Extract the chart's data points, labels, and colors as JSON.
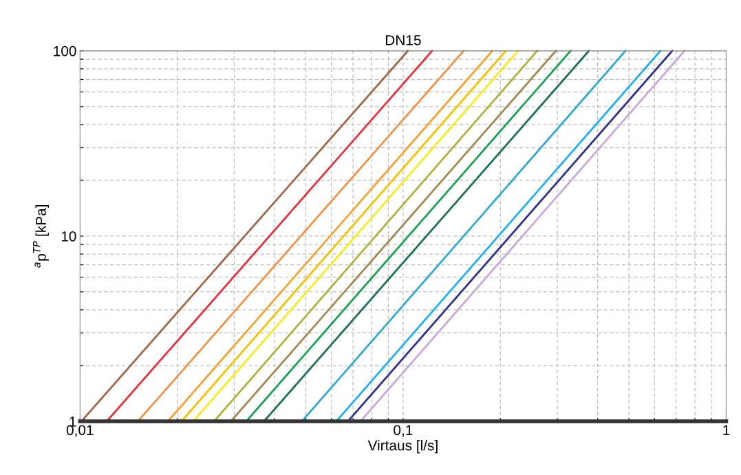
{
  "chart_data": {
    "type": "line",
    "title": "DN15",
    "xlabel": "Virtaus [l/s]",
    "ylabel": "$^{a}$p$^{TP}$ [kPa]",
    "log": "xy",
    "grid": true,
    "line_style": "solid",
    "xlim": [
      0.01,
      1
    ],
    "ylim": [
      1,
      100
    ],
    "xticks": [
      {
        "value": 0.01,
        "label": "0,01"
      },
      {
        "value": 0.02,
        "label": null
      },
      {
        "value": 0.03,
        "label": null
      },
      {
        "value": 0.04,
        "label": null
      },
      {
        "value": 0.05,
        "label": null
      },
      {
        "value": 0.06,
        "label": null
      },
      {
        "value": 0.07,
        "label": null
      },
      {
        "value": 0.08,
        "label": null
      },
      {
        "value": 0.09,
        "label": null
      },
      {
        "value": 0.1,
        "label": "0,1"
      },
      {
        "value": 0.2,
        "label": null
      },
      {
        "value": 0.3,
        "label": null
      },
      {
        "value": 0.4,
        "label": null
      },
      {
        "value": 0.5,
        "label": null
      },
      {
        "value": 0.6,
        "label": null
      },
      {
        "value": 0.7,
        "label": null
      },
      {
        "value": 0.8,
        "label": null
      },
      {
        "value": 0.9,
        "label": null
      },
      1
    ],
    "yticks": [
      1,
      {
        "value": 2,
        "label": null
      },
      {
        "value": 3,
        "label": null
      },
      {
        "value": 4,
        "label": null
      },
      {
        "value": 5,
        "label": null
      },
      {
        "value": 6,
        "label": null
      },
      {
        "value": 7,
        "label": null
      },
      {
        "value": 8,
        "label": null
      },
      {
        "value": 9,
        "label": null
      },
      10,
      {
        "value": 20,
        "label": null
      },
      {
        "value": 30,
        "label": null
      },
      {
        "value": 40,
        "label": null
      },
      {
        "value": 50,
        "label": null
      },
      {
        "value": 60,
        "label": null
      },
      {
        "value": 70,
        "label": null
      },
      {
        "value": 80,
        "label": null
      },
      {
        "value": 90,
        "label": null
      },
      100
    ],
    "series": [
      {
        "color": "#a0664a",
        "x": [
          0.0101,
          0.1035
        ],
        "values": [
          1,
          100
        ]
      },
      {
        "color": "#e8303a",
        "x": [
          0.0121,
          0.123
        ],
        "values": [
          1,
          100
        ]
      },
      {
        "color": "#f0924a",
        "x": [
          0.0151,
          0.154
        ],
        "values": [
          1,
          100
        ]
      },
      {
        "color": "#f5a030",
        "x": [
          0.0187,
          0.189
        ],
        "values": [
          1,
          100
        ]
      },
      {
        "color": "#f8c000",
        "x": [
          0.0206,
          0.208
        ],
        "values": [
          1,
          100
        ]
      },
      {
        "color": "#f5eb20",
        "x": [
          0.0224,
          0.227
        ],
        "values": [
          1,
          100
        ]
      },
      {
        "color": "#b0b040",
        "x": [
          0.026,
          0.26
        ],
        "values": [
          1,
          100
        ]
      },
      {
        "color": "#a08850",
        "x": [
          0.0293,
          0.297
        ],
        "values": [
          1,
          100
        ]
      },
      {
        "color": "#1aa050",
        "x": [
          0.0327,
          0.33
        ],
        "values": [
          1,
          100
        ]
      },
      {
        "color": "#1a7050",
        "x": [
          0.0371,
          0.376
        ],
        "values": [
          1,
          100
        ]
      },
      {
        "color": "#30a8d0",
        "x": [
          0.0486,
          0.488
        ],
        "values": [
          1,
          100
        ]
      },
      {
        "color": "#20b0f0",
        "x": [
          0.0621,
          0.626
        ],
        "values": [
          1,
          100
        ]
      },
      {
        "color": "#303090",
        "x": [
          0.0675,
          0.681
        ],
        "values": [
          1,
          100
        ]
      },
      {
        "color": "#c8a8d8",
        "x": [
          0.0738,
          0.743
        ],
        "values": [
          1,
          100
        ]
      }
    ]
  }
}
